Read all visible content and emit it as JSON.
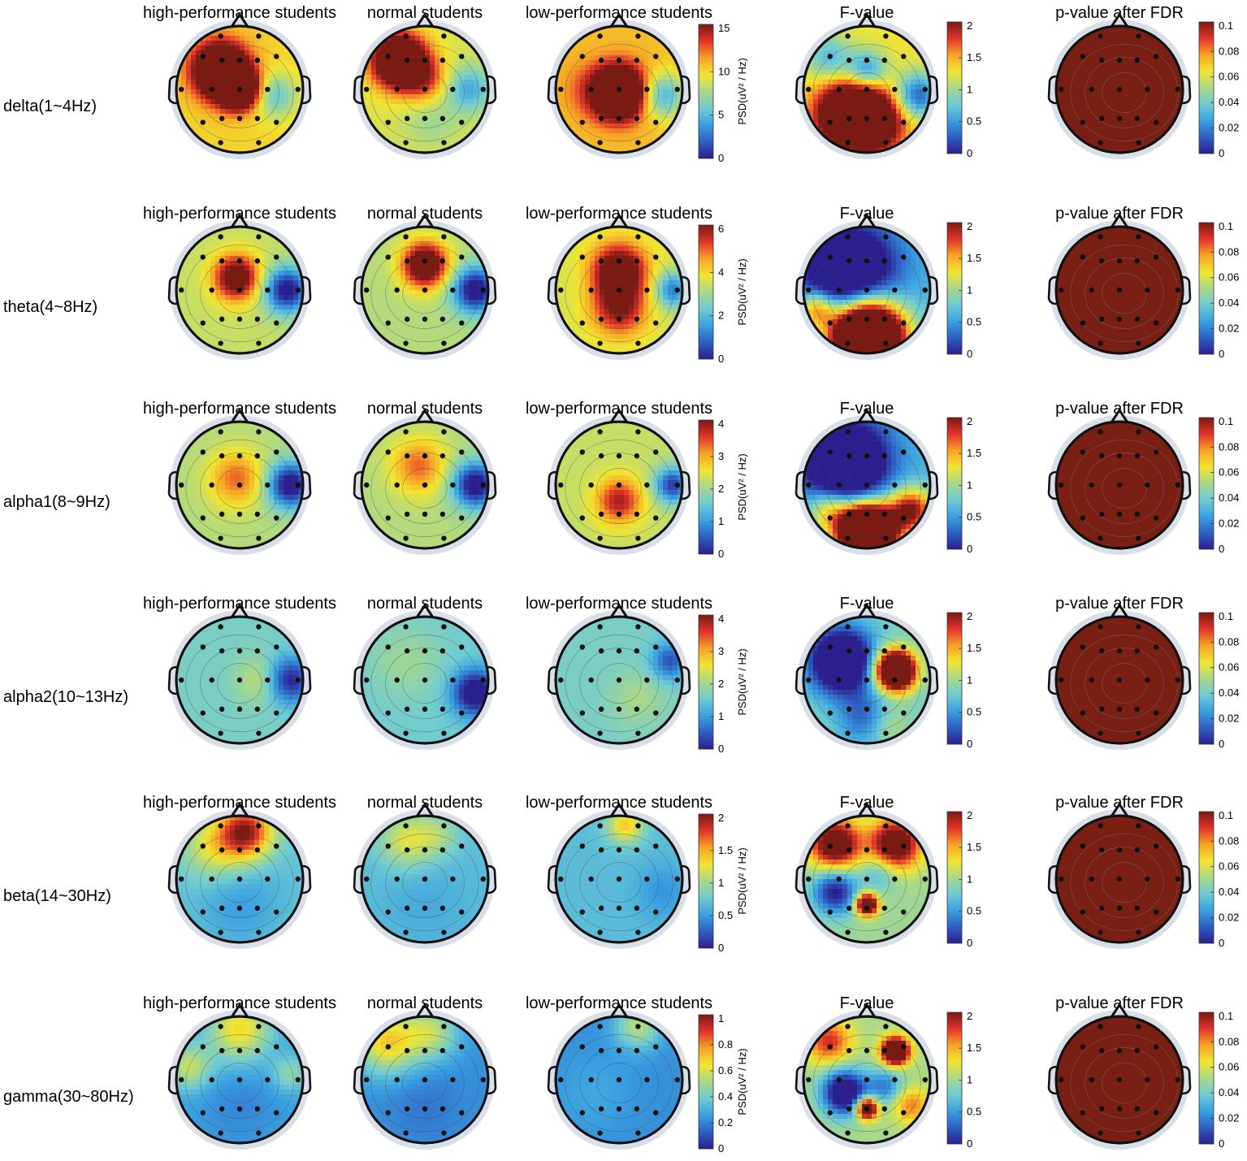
{
  "column_titles": [
    "high-performance students",
    "normal students",
    "low-performance students",
    "F-value",
    "p-value after FDR"
  ],
  "psd_colorbar_label": "PSD(uV² / Hz)",
  "colormap": [
    "#2b1e8f",
    "#2e5fc4",
    "#3aa0e0",
    "#6fcbd3",
    "#a8d88a",
    "#f2e531",
    "#f7a325",
    "#e2332a",
    "#7a1a12"
  ],
  "head_outline_color": "#111111",
  "electrode_color": "#111111",
  "contour_color": "#3c4a3c",
  "rows": [
    {
      "band": "delta(1~4Hz)",
      "psd_ticks": [
        "0",
        "5",
        "10",
        "15"
      ],
      "psd_max": 16,
      "f_ticks": [
        "0",
        "0.5",
        "1",
        "1.5",
        "2"
      ],
      "p_ticks": [
        "0",
        "0.02",
        "0.04",
        "0.06",
        "0.08",
        "0.1"
      ],
      "maps": [
        {
          "base": 0.66,
          "blobs": [
            [
              -0.3,
              -0.3,
              0.3,
              0.9
            ],
            [
              0.0,
              0.0,
              0.22,
              0.8
            ],
            [
              0.55,
              0.1,
              0.25,
              -0.3
            ]
          ]
        },
        {
          "base": 0.58,
          "blobs": [
            [
              -0.4,
              -0.45,
              0.3,
              0.9
            ],
            [
              0.0,
              -0.15,
              0.25,
              0.25
            ],
            [
              0.7,
              0.0,
              0.25,
              -0.3
            ],
            [
              0.1,
              0.5,
              0.3,
              -0.1
            ]
          ]
        },
        {
          "base": 0.7,
          "blobs": [
            [
              0.0,
              0.05,
              0.28,
              0.95
            ],
            [
              0.7,
              0.1,
              0.25,
              -0.4
            ],
            [
              -0.5,
              0.0,
              0.3,
              0.1
            ]
          ]
        },
        {
          "base": 0.62,
          "blobs": [
            [
              -0.3,
              0.4,
              0.35,
              0.8
            ],
            [
              0.1,
              0.5,
              0.35,
              0.6
            ],
            [
              0.0,
              -0.3,
              0.22,
              -0.4
            ],
            [
              -0.6,
              -0.5,
              0.25,
              -0.3
            ],
            [
              0.8,
              0.1,
              0.25,
              -0.5
            ]
          ]
        }
      ]
    },
    {
      "band": "theta(4~8Hz)",
      "psd_ticks": [
        "0",
        "2",
        "4",
        "6"
      ],
      "psd_max": 6.3,
      "f_ticks": [
        "0",
        "0.5",
        "1",
        "1.5",
        "2"
      ],
      "p_ticks": [
        "0",
        "0.02",
        "0.04",
        "0.06",
        "0.08",
        "0.1"
      ],
      "maps": [
        {
          "base": 0.55,
          "blobs": [
            [
              -0.05,
              -0.2,
              0.25,
              0.6
            ],
            [
              0.75,
              0.0,
              0.25,
              -0.6
            ]
          ]
        },
        {
          "base": 0.52,
          "blobs": [
            [
              0.0,
              -0.4,
              0.25,
              0.7
            ],
            [
              0.8,
              0.0,
              0.25,
              -0.6
            ]
          ]
        },
        {
          "base": 0.58,
          "blobs": [
            [
              0.0,
              -0.3,
              0.3,
              0.6
            ],
            [
              0.0,
              0.3,
              0.3,
              0.4
            ],
            [
              0.85,
              0.0,
              0.2,
              -0.4
            ]
          ]
        },
        {
          "base": 0.3,
          "blobs": [
            [
              -0.3,
              -0.3,
              0.5,
              -0.7
            ],
            [
              0.0,
              0.75,
              0.4,
              1.8
            ],
            [
              -0.8,
              0.3,
              0.2,
              0.5
            ]
          ]
        }
      ]
    },
    {
      "band": "alpha1(8~9Hz)",
      "psd_ticks": [
        "0",
        "1",
        "2",
        "3",
        "4"
      ],
      "psd_max": 4.2,
      "f_ticks": [
        "0",
        "0.5",
        "1",
        "1.5",
        "2"
      ],
      "p_ticks": [
        "0",
        "0.02",
        "0.04",
        "0.06",
        "0.08",
        "0.1"
      ],
      "maps": [
        {
          "base": 0.52,
          "blobs": [
            [
              -0.05,
              -0.1,
              0.3,
              0.3
            ],
            [
              0.8,
              0.0,
              0.25,
              -0.6
            ]
          ]
        },
        {
          "base": 0.52,
          "blobs": [
            [
              -0.1,
              -0.3,
              0.3,
              0.3
            ],
            [
              0.8,
              0.0,
              0.25,
              -0.6
            ]
          ]
        },
        {
          "base": 0.55,
          "blobs": [
            [
              0.0,
              0.25,
              0.25,
              0.4
            ],
            [
              0.85,
              0.0,
              0.2,
              -0.5
            ]
          ]
        },
        {
          "base": 0.3,
          "blobs": [
            [
              -0.35,
              -0.35,
              0.45,
              -0.8
            ],
            [
              0.0,
              0.75,
              0.3,
              1.9
            ],
            [
              0.7,
              0.4,
              0.25,
              0.7
            ],
            [
              -0.6,
              0.4,
              0.25,
              0.4
            ]
          ]
        }
      ]
    },
    {
      "band": "alpha2(10~13Hz)",
      "psd_ticks": [
        "0",
        "1",
        "2",
        "3",
        "4"
      ],
      "psd_max": 4.2,
      "f_ticks": [
        "0",
        "0.5",
        "1",
        "1.5",
        "2"
      ],
      "p_ticks": [
        "0",
        "0.02",
        "0.04",
        "0.06",
        "0.08",
        "0.1"
      ],
      "maps": [
        {
          "base": 0.4,
          "blobs": [
            [
              0.3,
              0.0,
              0.25,
              0.15
            ],
            [
              0.8,
              0.0,
              0.25,
              -0.4
            ]
          ]
        },
        {
          "base": 0.38,
          "blobs": [
            [
              -0.3,
              -0.3,
              0.4,
              0.1
            ],
            [
              0.8,
              0.2,
              0.25,
              -0.5
            ]
          ]
        },
        {
          "base": 0.4,
          "blobs": [
            [
              0.3,
              0.3,
              0.3,
              0.1
            ],
            [
              0.8,
              -0.3,
              0.2,
              -0.3
            ]
          ]
        },
        {
          "base": 0.4,
          "blobs": [
            [
              -0.4,
              -0.3,
              0.35,
              -0.8
            ],
            [
              0.45,
              -0.15,
              0.22,
              1.3
            ],
            [
              0.0,
              0.6,
              0.3,
              -0.3
            ],
            [
              0.3,
              0.7,
              0.25,
              0.2
            ]
          ]
        }
      ]
    },
    {
      "band": "beta(14~30Hz)",
      "psd_ticks": [
        "0",
        "0.5",
        "1",
        "1.5",
        "2"
      ],
      "psd_max": 2.1,
      "f_ticks": [
        "0",
        "0.5",
        "1",
        "1.5",
        "2"
      ],
      "p_ticks": [
        "0",
        "0.02",
        "0.04",
        "0.06",
        "0.08",
        "0.1"
      ],
      "maps": [
        {
          "base": 0.35,
          "blobs": [
            [
              0.1,
              -0.75,
              0.3,
              0.6
            ],
            [
              -0.4,
              -0.5,
              0.35,
              0.25
            ],
            [
              0.0,
              0.4,
              0.45,
              -0.1
            ]
          ]
        },
        {
          "base": 0.33,
          "blobs": [
            [
              -0.3,
              -0.6,
              0.3,
              0.25
            ],
            [
              0.2,
              -0.7,
              0.25,
              0.15
            ],
            [
              0.0,
              0.4,
              0.45,
              -0.05
            ]
          ]
        },
        {
          "base": 0.33,
          "blobs": [
            [
              0.1,
              -0.85,
              0.2,
              0.35
            ],
            [
              0.7,
              0.2,
              0.3,
              -0.1
            ]
          ]
        },
        {
          "base": 0.48,
          "blobs": [
            [
              -0.5,
              -0.55,
              0.28,
              0.7
            ],
            [
              0.45,
              -0.55,
              0.28,
              0.7
            ],
            [
              0.0,
              0.4,
              0.12,
              0.9
            ],
            [
              -0.5,
              0.2,
              0.25,
              -0.5
            ],
            [
              0.2,
              -0.1,
              0.2,
              -0.2
            ]
          ]
        }
      ]
    },
    {
      "band": "gamma(30~80Hz)",
      "psd_ticks": [
        "0",
        "0.2",
        "0.4",
        "0.6",
        "0.8",
        "1"
      ],
      "psd_max": 1.05,
      "f_ticks": [
        "0",
        "0.5",
        "1",
        "1.5",
        "2"
      ],
      "p_ticks": [
        "0",
        "0.02",
        "0.04",
        "0.06",
        "0.08",
        "0.1"
      ],
      "maps": [
        {
          "base": 0.25,
          "blobs": [
            [
              0.0,
              -0.8,
              0.35,
              0.4
            ],
            [
              -0.8,
              -0.2,
              0.25,
              0.3
            ],
            [
              0.8,
              -0.1,
              0.2,
              0.2
            ],
            [
              0.0,
              0.4,
              0.4,
              -0.05
            ]
          ]
        },
        {
          "base": 0.22,
          "blobs": [
            [
              -0.6,
              -0.6,
              0.35,
              0.45
            ],
            [
              0.1,
              -0.75,
              0.3,
              0.3
            ],
            [
              0.0,
              0.4,
              0.4,
              -0.05
            ]
          ]
        },
        {
          "base": 0.22,
          "blobs": [
            [
              0.3,
              -0.85,
              0.25,
              0.3
            ],
            [
              -0.4,
              0.2,
              0.4,
              0.05
            ]
          ]
        },
        {
          "base": 0.5,
          "blobs": [
            [
              0.45,
              -0.45,
              0.15,
              1.0
            ],
            [
              0.0,
              0.45,
              0.12,
              0.9
            ],
            [
              -0.35,
              0.2,
              0.25,
              -0.7
            ],
            [
              0.3,
              0.1,
              0.2,
              -0.3
            ],
            [
              0.7,
              0.4,
              0.2,
              0.3
            ],
            [
              -0.6,
              -0.6,
              0.25,
              0.4
            ]
          ]
        }
      ]
    }
  ]
}
